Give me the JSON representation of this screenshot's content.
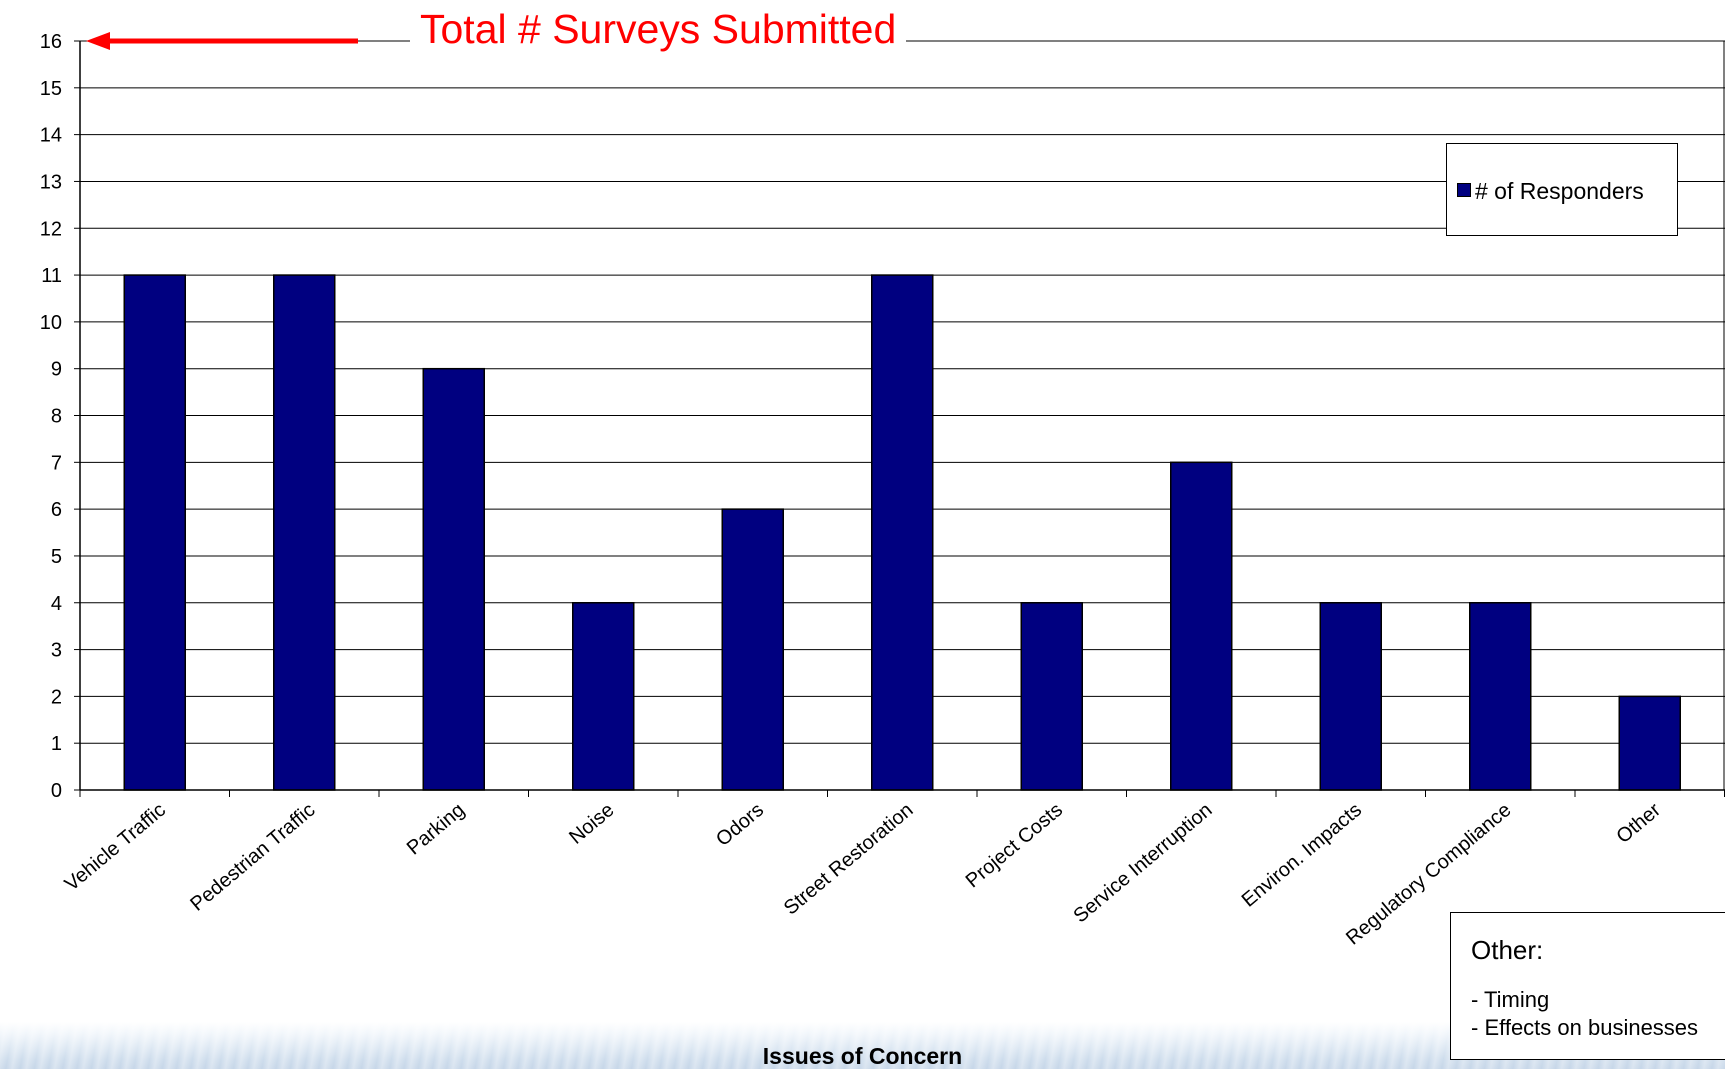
{
  "chart_data": {
    "type": "bar",
    "categories": [
      "Vehicle Traffic",
      "Pedestrian Traffic",
      "Parking",
      "Noise",
      "Odors",
      "Street Restoration",
      "Project Costs",
      "Service Interruption",
      "Environ. Impacts",
      "Regulatory Compliance",
      "Other"
    ],
    "series": [
      {
        "name": "# of Responders",
        "values": [
          11,
          11,
          9,
          4,
          6,
          11,
          4,
          7,
          4,
          4,
          2
        ],
        "color": "#000080"
      }
    ],
    "xlabel": "Issues of Concern",
    "ylabel": "",
    "ylim": [
      0,
      16
    ],
    "yticks": [
      0,
      1,
      2,
      3,
      4,
      5,
      6,
      7,
      8,
      9,
      10,
      11,
      12,
      13,
      14,
      15,
      16
    ],
    "grid": true,
    "legend_placement": "top-right",
    "annotation": {
      "text": "Total # Surveys Submitted",
      "value": 16,
      "color": "#ff0000"
    }
  },
  "other_box": {
    "title": "Other:",
    "items": [
      "- Timing",
      "- Effects on businesses"
    ]
  }
}
